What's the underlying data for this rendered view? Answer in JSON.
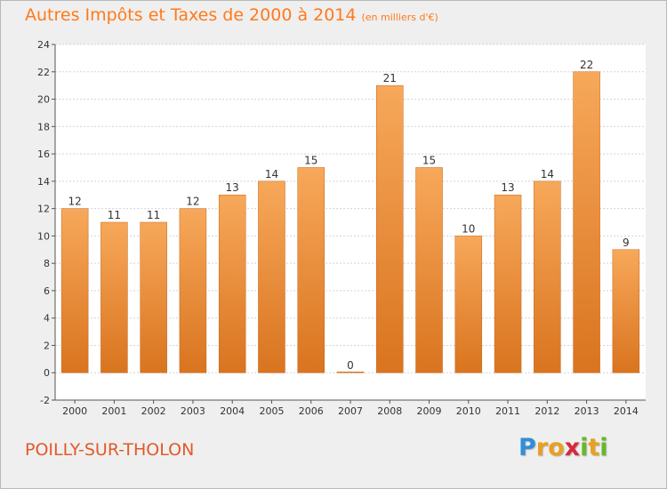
{
  "header": {
    "title": "Autres Impôts et Taxes de 2000 à 2014",
    "subtitle": "(en milliers d'€)"
  },
  "footer": {
    "city": "POILLY-SUR-THOLON",
    "logo_letters": [
      {
        "ch": "P",
        "color": "#2f8fd8"
      },
      {
        "ch": "r",
        "color": "#e8a020"
      },
      {
        "ch": "o",
        "color": "#e8a020"
      },
      {
        "ch": "x",
        "color": "#d8283c"
      },
      {
        "ch": "i",
        "color": "#68b828"
      },
      {
        "ch": "t",
        "color": "#e8a020"
      },
      {
        "ch": "i",
        "color": "#68b828"
      }
    ]
  },
  "chart_data": {
    "type": "bar",
    "categories": [
      "2000",
      "2001",
      "2002",
      "2003",
      "2004",
      "2005",
      "2006",
      "2007",
      "2008",
      "2009",
      "2010",
      "2011",
      "2012",
      "2013",
      "2014"
    ],
    "values": [
      12,
      11,
      11,
      12,
      13,
      14,
      15,
      0,
      21,
      15,
      10,
      13,
      14,
      22,
      9
    ],
    "title": "Autres Impôts et Taxes de 2000 à 2014",
    "ylim": [
      -2,
      24
    ],
    "yticks": [
      -2,
      0,
      2,
      4,
      6,
      8,
      10,
      12,
      14,
      16,
      18,
      20,
      22,
      24
    ],
    "grid": true,
    "bar_color_light": "#f7a85a",
    "bar_color_dark": "#d9741f"
  }
}
